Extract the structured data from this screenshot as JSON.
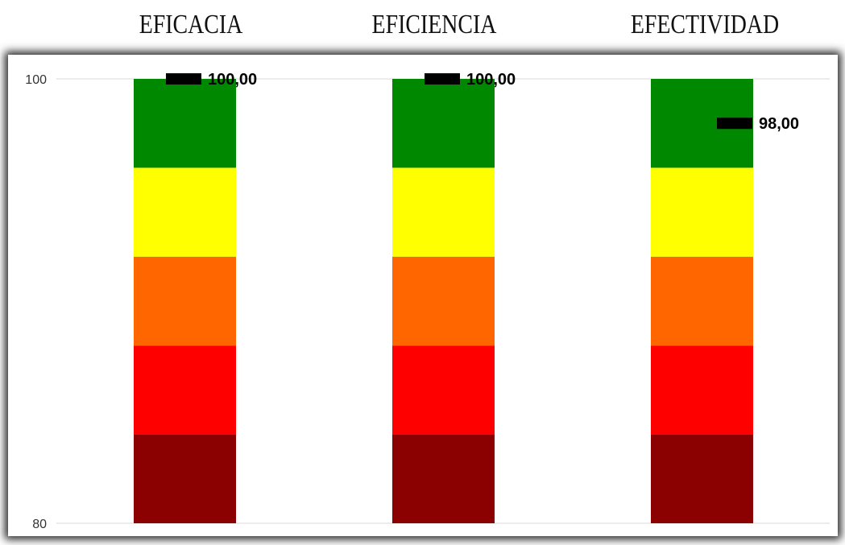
{
  "chart_data": {
    "type": "bar",
    "categories": [
      "EFICACIA",
      "EFICIENCIA",
      "EFECTIVIDAD"
    ],
    "ylim": [
      80,
      100
    ],
    "yticks": [
      {
        "label": "100",
        "value": 100
      },
      {
        "label": "80",
        "value": 80
      }
    ],
    "bands": [
      {
        "from": 80,
        "to": 84,
        "color": "#8b0000"
      },
      {
        "from": 84,
        "to": 88,
        "color": "#ff0000"
      },
      {
        "from": 88,
        "to": 92,
        "color": "#ff6600"
      },
      {
        "from": 92,
        "to": 96,
        "color": "#ffff00"
      },
      {
        "from": 96,
        "to": 100,
        "color": "#008800"
      }
    ],
    "series": [
      {
        "values": [
          100,
          100,
          98
        ],
        "labels": [
          "100,00",
          "100,00",
          "98,00"
        ]
      }
    ],
    "grid": true
  }
}
